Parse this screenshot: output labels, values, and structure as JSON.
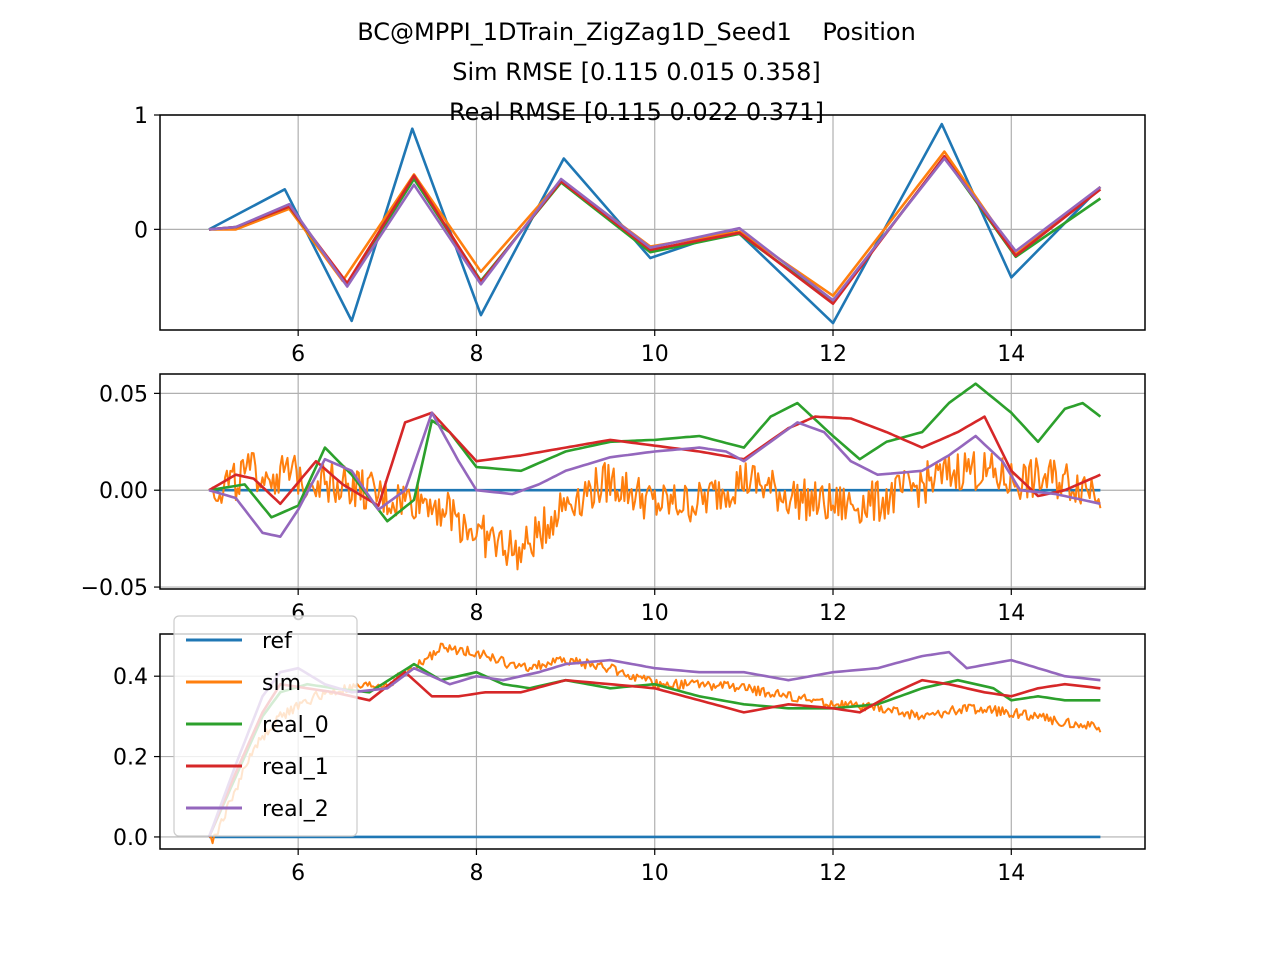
{
  "figure": {
    "title_line1": "BC@MPPI_1DTrain_ZigZag1D_Seed1    Position",
    "title_line2": "Sim RMSE [0.115 0.015 0.358]",
    "title_line3": "Real RMSE [0.115 0.022 0.371]"
  },
  "colors": {
    "ref": "#1f77b4",
    "sim": "#ff7f0e",
    "real_0": "#2ca02c",
    "real_1": "#d62728",
    "real_2": "#9467bd"
  },
  "chart_data": [
    {
      "type": "line",
      "panel": "top",
      "xlim": [
        4.45,
        15.5
      ],
      "ylim": [
        -0.88,
        1.0
      ],
      "xticks": [
        6,
        8,
        10,
        12,
        14
      ],
      "yticks": [
        0,
        1
      ],
      "grid": true,
      "series": [
        {
          "name": "ref",
          "x": [
            5.0,
            5.85,
            6.6,
            7.28,
            8.05,
            8.98,
            9.95,
            10.9,
            12.0,
            13.22,
            14.0,
            15.0
          ],
          "y": [
            0.0,
            0.35,
            -0.8,
            0.88,
            -0.75,
            0.62,
            -0.25,
            0.0,
            -0.82,
            0.92,
            -0.42,
            0.37
          ]
        },
        {
          "name": "sim",
          "x": [
            5.0,
            5.3,
            5.9,
            6.5,
            7.3,
            8.05,
            8.95,
            9.95,
            10.95,
            12.0,
            13.25,
            14.05,
            15.0
          ],
          "y": [
            0.0,
            0.0,
            0.18,
            -0.45,
            0.48,
            -0.37,
            0.43,
            -0.15,
            -0.02,
            -0.58,
            0.68,
            -0.22,
            0.37
          ]
        },
        {
          "name": "real_0",
          "x": [
            5.0,
            5.3,
            5.9,
            6.55,
            7.3,
            8.05,
            8.95,
            9.95,
            10.95,
            12.0,
            13.25,
            14.05,
            15.0
          ],
          "y": [
            0.0,
            0.02,
            0.2,
            -0.48,
            0.44,
            -0.45,
            0.41,
            -0.2,
            -0.04,
            -0.63,
            0.63,
            -0.24,
            0.27
          ]
        },
        {
          "name": "real_1",
          "x": [
            5.0,
            5.3,
            5.9,
            6.55,
            7.3,
            8.05,
            8.95,
            9.95,
            10.95,
            12.0,
            13.25,
            14.05,
            15.0
          ],
          "y": [
            0.0,
            0.02,
            0.2,
            -0.47,
            0.47,
            -0.46,
            0.42,
            -0.18,
            -0.03,
            -0.65,
            0.64,
            -0.23,
            0.35
          ]
        },
        {
          "name": "real_2",
          "x": [
            5.0,
            5.3,
            5.9,
            6.55,
            7.3,
            8.05,
            8.95,
            9.95,
            10.95,
            12.0,
            13.25,
            14.05,
            15.0
          ],
          "y": [
            0.0,
            0.02,
            0.22,
            -0.5,
            0.39,
            -0.48,
            0.44,
            -0.16,
            0.01,
            -0.62,
            0.62,
            -0.19,
            0.37
          ]
        }
      ]
    },
    {
      "type": "line",
      "panel": "middle",
      "xlim": [
        4.45,
        15.5
      ],
      "ylim": [
        -0.051,
        0.06
      ],
      "xticks": [
        6,
        8,
        10,
        12,
        14
      ],
      "yticks": [
        -0.05,
        0.0,
        0.05
      ],
      "ytick_labels": [
        "−0.05",
        "0.00",
        "0.05"
      ],
      "grid": true,
      "series": [
        {
          "name": "ref",
          "x": [
            5.0,
            15.0
          ],
          "y": [
            0.0,
            0.0
          ]
        },
        {
          "name": "sim",
          "noise": 0.011,
          "x": [
            5.0,
            5.5,
            6.0,
            6.5,
            7.0,
            7.5,
            8.0,
            8.5,
            9.0,
            9.5,
            10.0,
            10.5,
            11.0,
            11.5,
            12.0,
            12.5,
            13.0,
            13.5,
            14.0,
            14.5,
            15.0
          ],
          "y": [
            0.0,
            0.009,
            0.007,
            0.004,
            -0.005,
            -0.005,
            -0.022,
            -0.033,
            -0.006,
            0.005,
            -0.007,
            -0.006,
            0.006,
            -0.003,
            -0.008,
            -0.006,
            0.003,
            0.012,
            0.005,
            0.006,
            0.001
          ]
        },
        {
          "name": "real_0",
          "x": [
            5.0,
            5.4,
            5.7,
            6.0,
            6.3,
            6.6,
            7.0,
            7.3,
            7.5,
            7.7,
            8.0,
            8.5,
            9.0,
            9.5,
            10.0,
            10.5,
            11.0,
            11.3,
            11.6,
            12.0,
            12.3,
            12.6,
            13.0,
            13.3,
            13.6,
            14.0,
            14.3,
            14.6,
            14.8,
            15.0
          ],
          "y": [
            0.0,
            0.003,
            -0.014,
            -0.008,
            0.022,
            0.008,
            -0.016,
            -0.005,
            0.036,
            0.03,
            0.012,
            0.01,
            0.02,
            0.025,
            0.026,
            0.028,
            0.022,
            0.038,
            0.045,
            0.028,
            0.016,
            0.025,
            0.03,
            0.045,
            0.055,
            0.04,
            0.025,
            0.042,
            0.045,
            0.038
          ]
        },
        {
          "name": "real_1",
          "x": [
            5.0,
            5.3,
            5.5,
            5.8,
            6.2,
            6.5,
            6.9,
            7.2,
            7.5,
            7.8,
            8.0,
            8.5,
            9.0,
            9.5,
            10.0,
            10.5,
            11.0,
            11.5,
            11.8,
            12.2,
            12.6,
            13.0,
            13.4,
            13.7,
            14.0,
            14.3,
            14.6,
            15.0
          ],
          "y": [
            0.0,
            0.008,
            0.006,
            -0.007,
            0.015,
            0.003,
            -0.008,
            0.035,
            0.04,
            0.025,
            0.015,
            0.018,
            0.022,
            0.026,
            0.023,
            0.02,
            0.016,
            0.032,
            0.038,
            0.037,
            0.03,
            0.022,
            0.03,
            0.038,
            0.01,
            -0.003,
            0.0,
            0.008
          ]
        },
        {
          "name": "real_2",
          "x": [
            5.0,
            5.3,
            5.6,
            5.8,
            6.0,
            6.3,
            6.6,
            6.9,
            7.2,
            7.5,
            7.8,
            8.0,
            8.4,
            8.7,
            9.0,
            9.5,
            10.0,
            10.5,
            10.8,
            11.0,
            11.3,
            11.6,
            11.9,
            12.2,
            12.5,
            13.0,
            13.3,
            13.6,
            13.9,
            14.1,
            14.5,
            15.0
          ],
          "y": [
            0.0,
            -0.004,
            -0.022,
            -0.024,
            -0.01,
            0.016,
            0.01,
            -0.01,
            0.0,
            0.04,
            0.015,
            0.0,
            -0.002,
            0.003,
            0.01,
            0.017,
            0.02,
            0.022,
            0.02,
            0.015,
            0.025,
            0.035,
            0.03,
            0.015,
            0.008,
            0.01,
            0.018,
            0.028,
            0.015,
            0.0,
            -0.002,
            -0.007
          ]
        }
      ]
    },
    {
      "type": "line",
      "panel": "bottom",
      "xlim": [
        4.45,
        15.5
      ],
      "ylim": [
        -0.03,
        0.505
      ],
      "xticks": [
        6,
        8,
        10,
        12,
        14
      ],
      "yticks": [
        0.0,
        0.2,
        0.4
      ],
      "ytick_labels": [
        "0.0",
        "0.2",
        "0.4"
      ],
      "grid": true,
      "legend": "upper-left",
      "legend_entries": [
        "ref",
        "sim",
        "real_0",
        "real_1",
        "real_2"
      ],
      "series": [
        {
          "name": "ref",
          "x": [
            5.0,
            15.0
          ],
          "y": [
            0.0,
            0.0
          ]
        },
        {
          "name": "sim",
          "noise": 0.012,
          "x": [
            5.0,
            5.05,
            5.3,
            5.5,
            5.8,
            6.2,
            6.6,
            7.0,
            7.3,
            7.6,
            8.0,
            8.5,
            9.0,
            9.5,
            10.0,
            10.5,
            11.0,
            11.5,
            12.0,
            12.5,
            13.0,
            13.5,
            14.0,
            14.5,
            15.0
          ],
          "y": [
            0.0,
            -0.01,
            0.12,
            0.22,
            0.3,
            0.35,
            0.37,
            0.38,
            0.42,
            0.47,
            0.46,
            0.42,
            0.44,
            0.42,
            0.38,
            0.38,
            0.37,
            0.35,
            0.33,
            0.32,
            0.3,
            0.32,
            0.31,
            0.29,
            0.27
          ]
        },
        {
          "name": "real_0",
          "x": [
            5.0,
            5.3,
            5.6,
            5.8,
            6.1,
            6.4,
            6.8,
            7.3,
            7.6,
            8.0,
            8.3,
            8.6,
            9.0,
            9.5,
            10.0,
            10.5,
            11.0,
            11.5,
            12.0,
            12.5,
            13.0,
            13.4,
            13.8,
            14.0,
            14.3,
            14.6,
            15.0
          ],
          "y": [
            0.0,
            0.15,
            0.3,
            0.36,
            0.38,
            0.37,
            0.36,
            0.43,
            0.39,
            0.41,
            0.38,
            0.37,
            0.39,
            0.37,
            0.38,
            0.35,
            0.33,
            0.32,
            0.32,
            0.33,
            0.37,
            0.39,
            0.37,
            0.34,
            0.35,
            0.34,
            0.34
          ]
        },
        {
          "name": "real_1",
          "x": [
            5.0,
            5.3,
            5.6,
            5.8,
            6.1,
            6.4,
            6.8,
            7.2,
            7.5,
            7.8,
            8.1,
            8.5,
            9.0,
            9.5,
            10.0,
            10.5,
            11.0,
            11.5,
            12.0,
            12.3,
            12.7,
            13.0,
            13.3,
            13.7,
            14.0,
            14.3,
            14.6,
            15.0
          ],
          "y": [
            0.0,
            0.16,
            0.31,
            0.38,
            0.37,
            0.36,
            0.34,
            0.41,
            0.35,
            0.35,
            0.36,
            0.36,
            0.39,
            0.38,
            0.37,
            0.34,
            0.31,
            0.33,
            0.32,
            0.31,
            0.36,
            0.39,
            0.38,
            0.36,
            0.35,
            0.37,
            0.38,
            0.37
          ]
        },
        {
          "name": "real_2",
          "x": [
            5.0,
            5.3,
            5.6,
            5.8,
            6.0,
            6.3,
            6.6,
            7.0,
            7.3,
            7.7,
            8.0,
            8.3,
            8.7,
            9.0,
            9.5,
            10.0,
            10.5,
            11.0,
            11.5,
            12.0,
            12.5,
            13.0,
            13.3,
            13.5,
            14.0,
            14.3,
            14.6,
            15.0
          ],
          "y": [
            0.0,
            0.18,
            0.35,
            0.41,
            0.42,
            0.38,
            0.36,
            0.37,
            0.42,
            0.38,
            0.4,
            0.39,
            0.41,
            0.43,
            0.44,
            0.42,
            0.41,
            0.41,
            0.39,
            0.41,
            0.42,
            0.45,
            0.46,
            0.42,
            0.44,
            0.42,
            0.4,
            0.39
          ]
        }
      ]
    }
  ]
}
